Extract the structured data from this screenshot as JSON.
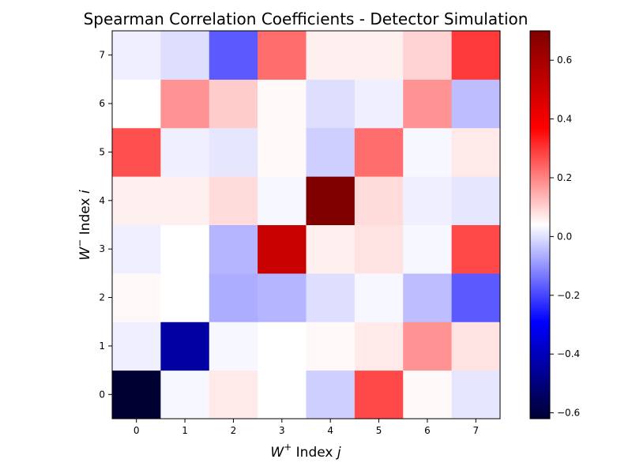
{
  "chart_data": {
    "type": "heatmap",
    "title": "Spearman Correlation Coefficients - Detector Simulation",
    "xlabel_main": "W",
    "xlabel_sup": "+",
    "xlabel_rest": " Index ",
    "xlabel_var": "j",
    "ylabel_main": "W",
    "ylabel_sup": "−",
    "ylabel_rest": " Index ",
    "ylabel_var": "i",
    "x_ticks": [
      "0",
      "1",
      "2",
      "3",
      "4",
      "5",
      "6",
      "7"
    ],
    "y_ticks": [
      "0",
      "1",
      "2",
      "3",
      "4",
      "5",
      "6",
      "7"
    ],
    "rows_index_from_bottom": [
      0,
      1,
      2,
      3,
      4,
      5,
      6,
      7
    ],
    "values": [
      [
        -0.62,
        -0.01,
        0.03,
        0.0,
        -0.06,
        0.25,
        0.01,
        -0.03
      ],
      [
        -0.02,
        -0.45,
        -0.01,
        0.0,
        0.01,
        0.03,
        0.15,
        0.04
      ],
      [
        0.01,
        0.0,
        -0.1,
        -0.09,
        -0.04,
        -0.01,
        -0.08,
        -0.2
      ],
      [
        -0.02,
        0.0,
        -0.09,
        0.5,
        0.02,
        0.04,
        -0.01,
        0.25
      ],
      [
        0.02,
        0.02,
        0.05,
        -0.01,
        0.7,
        0.05,
        -0.02,
        -0.03
      ],
      [
        0.24,
        -0.02,
        -0.03,
        0.01,
        -0.06,
        0.2,
        -0.01,
        0.03
      ],
      [
        0.0,
        0.15,
        0.07,
        0.01,
        -0.04,
        -0.02,
        0.15,
        -0.08
      ],
      [
        -0.02,
        -0.04,
        -0.2,
        0.2,
        0.02,
        0.02,
        0.06,
        0.27
      ]
    ],
    "colorbar": {
      "colormap": "seismic",
      "vmin": -0.62,
      "vmax": 0.7,
      "ticks": [
        -0.6,
        -0.4,
        -0.2,
        0.0,
        0.2,
        0.4,
        0.6
      ],
      "tick_labels": [
        "−0.6",
        "−0.4",
        "−0.2",
        "0.0",
        "0.2",
        "0.4",
        "0.6"
      ]
    },
    "grid": false
  }
}
